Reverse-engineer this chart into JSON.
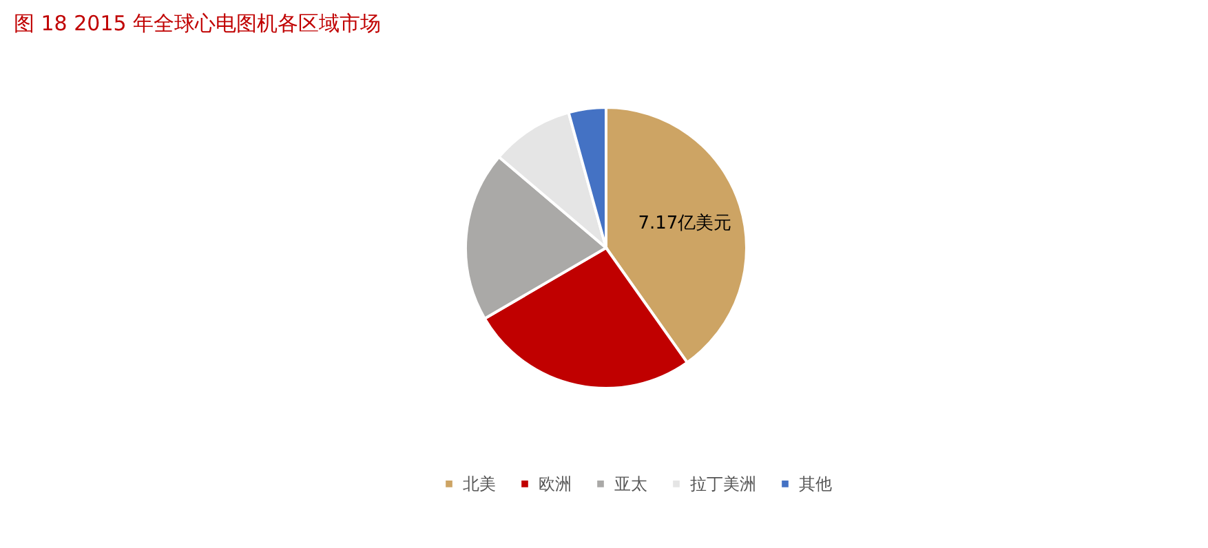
{
  "chart_data": {
    "type": "pie",
    "title": "图 18   2015 年全球心电图机各区域市场",
    "categories": [
      "北美",
      "欧洲",
      "亚太",
      "拉丁美洲",
      "其他"
    ],
    "values": [
      40.2,
      26.4,
      19.6,
      9.5,
      4.3
    ],
    "colors": [
      "#cda464",
      "#c00000",
      "#aaa9a7",
      "#e5e5e5",
      "#4472c4"
    ],
    "annotations": [
      "7.17亿美元"
    ],
    "legend": "bottom"
  }
}
